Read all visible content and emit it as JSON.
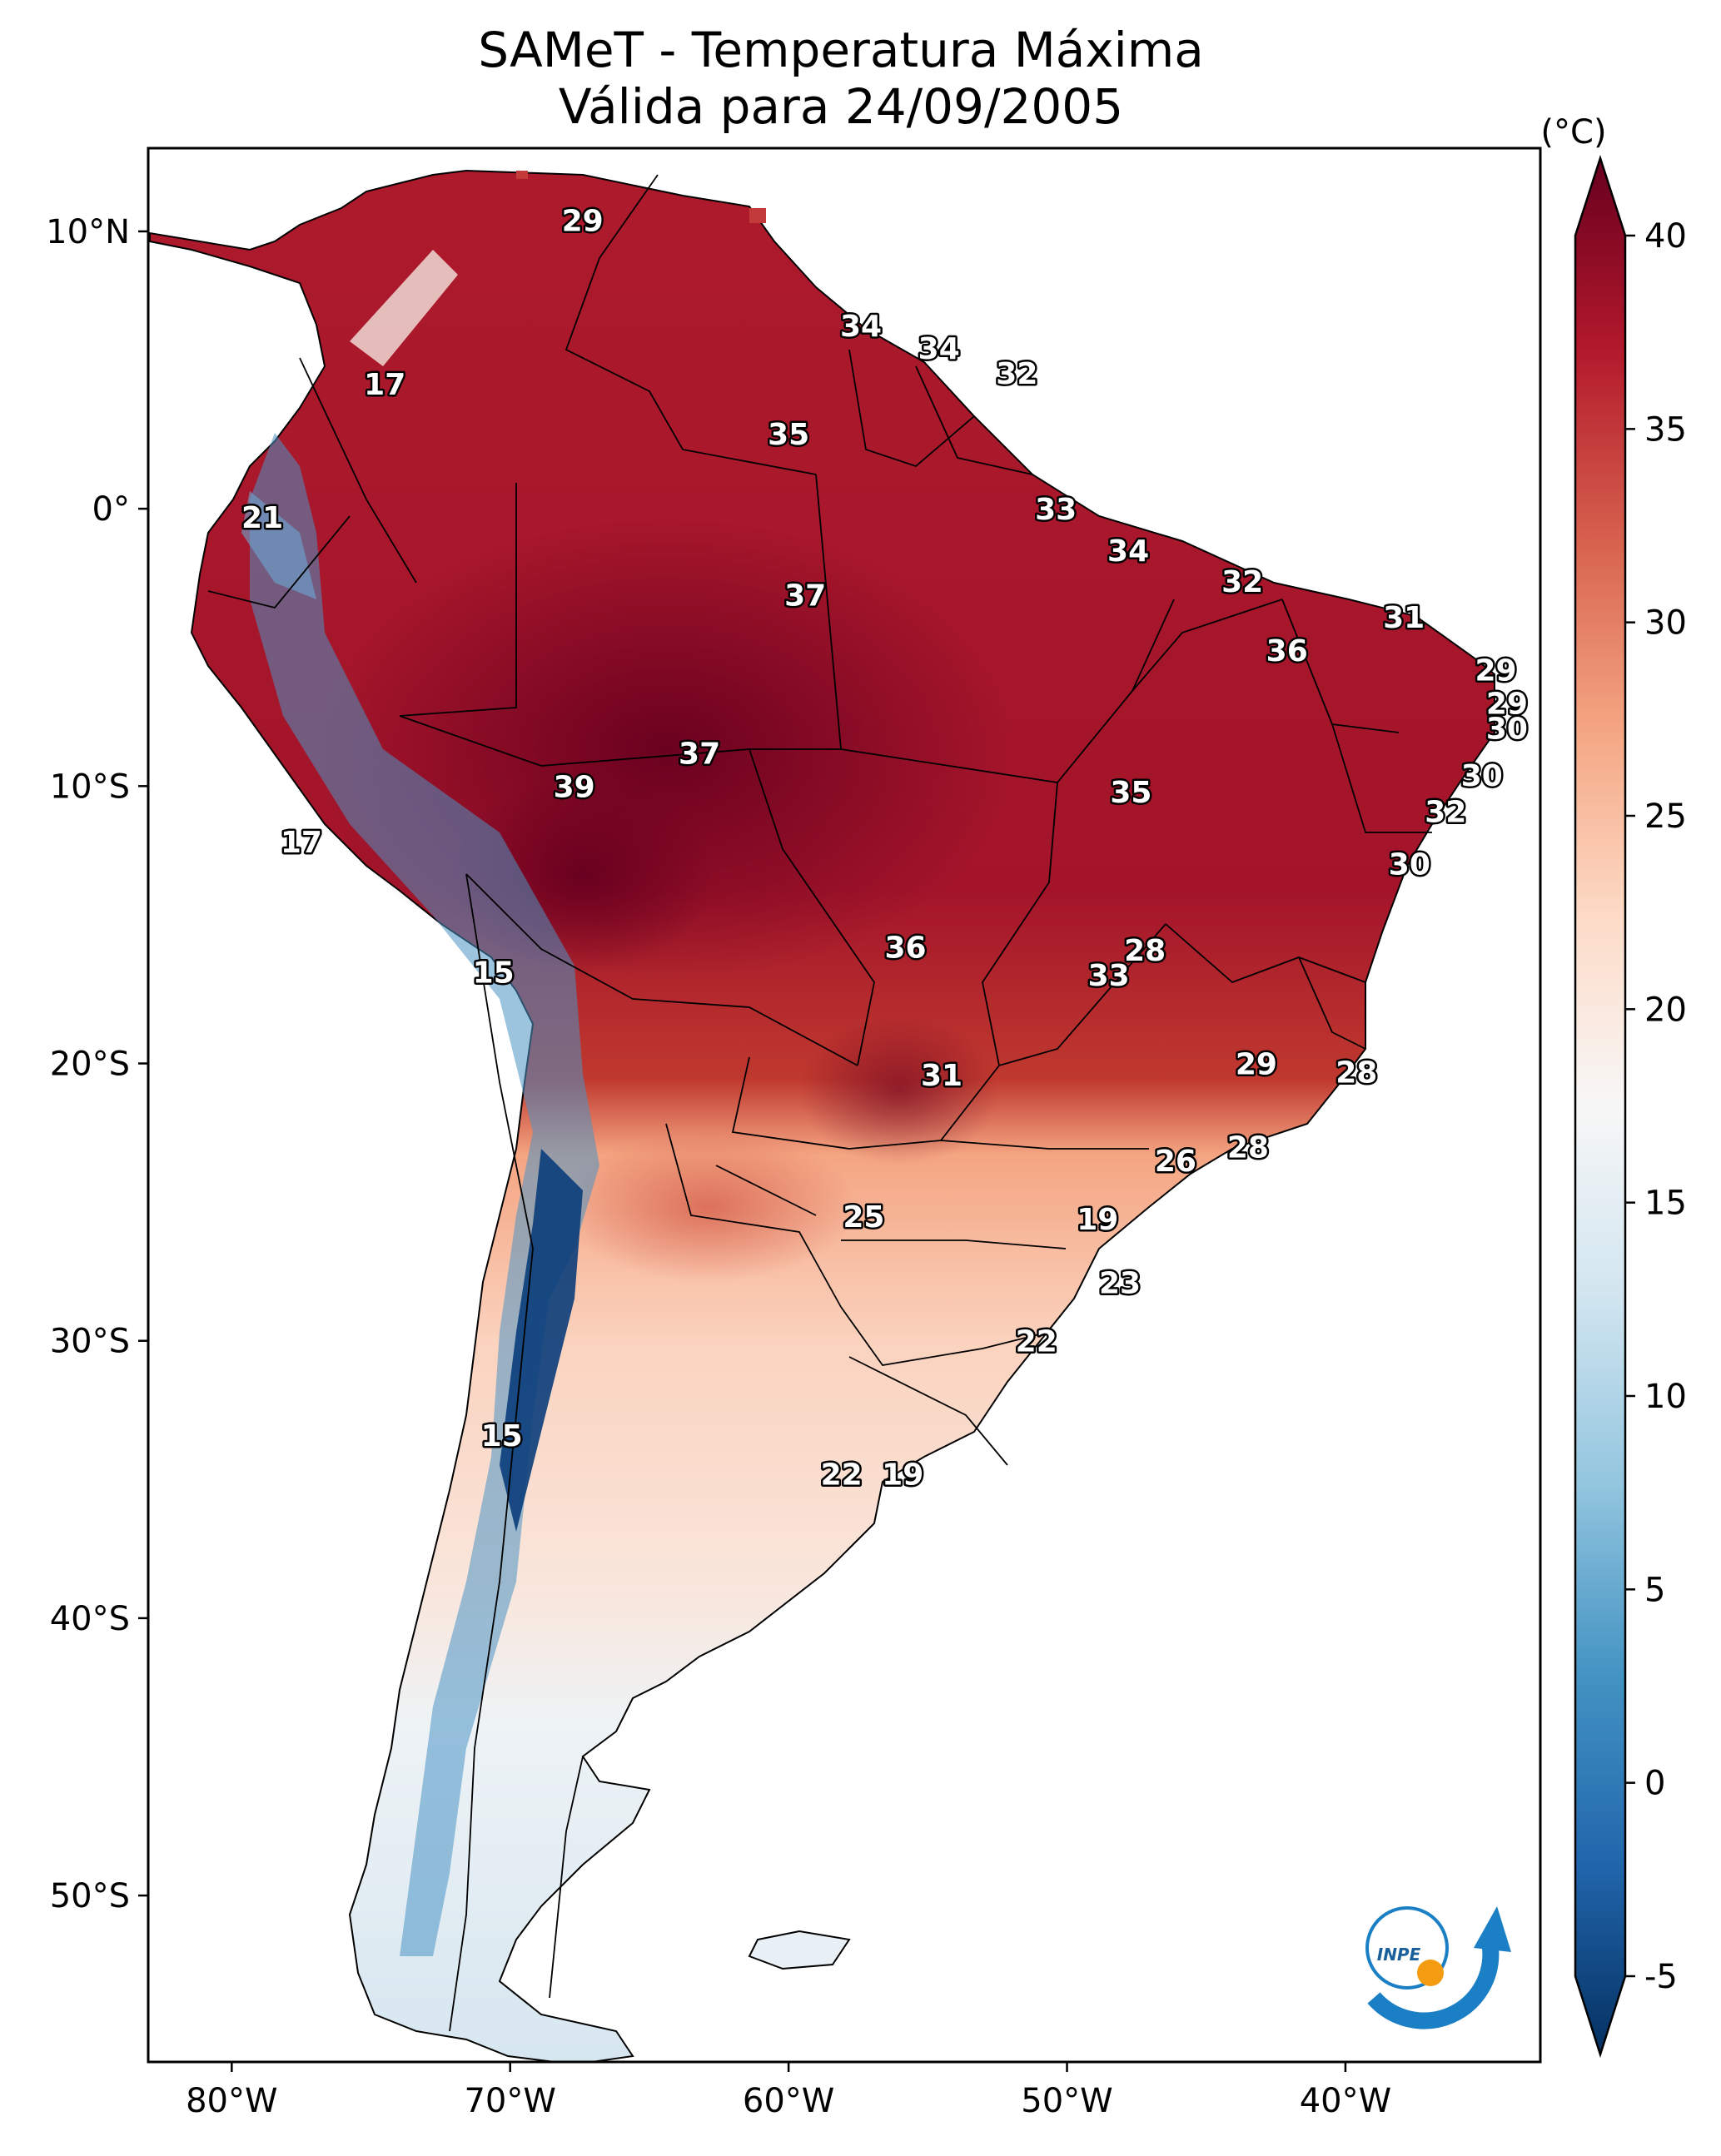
{
  "title": {
    "line1": "SAMeT - Temperatura Máxima",
    "line2": "Válida para 24/09/2005"
  },
  "map": {
    "lon_range": [
      -83,
      -33
    ],
    "lat_range": [
      -56,
      13
    ],
    "x_ticks": [
      {
        "lon": -80,
        "label": "80°W"
      },
      {
        "lon": -70,
        "label": "70°W"
      },
      {
        "lon": -60,
        "label": "60°W"
      },
      {
        "lon": -50,
        "label": "50°W"
      },
      {
        "lon": -40,
        "label": "40°W"
      }
    ],
    "y_ticks": [
      {
        "lat": 10,
        "label": "10°N"
      },
      {
        "lat": 0,
        "label": "0°"
      },
      {
        "lat": -10,
        "label": "10°S"
      },
      {
        "lat": -20,
        "label": "20°S"
      },
      {
        "lat": -30,
        "label": "30°S"
      },
      {
        "lat": -40,
        "label": "40°S"
      },
      {
        "lat": -50,
        "label": "50°S"
      }
    ],
    "labels": [
      {
        "value": "29",
        "lon": -67.4,
        "lat": 10.4
      },
      {
        "value": "34",
        "lon": -57.4,
        "lat": 6.6
      },
      {
        "value": "34",
        "lon": -54.6,
        "lat": 5.8
      },
      {
        "value": "32",
        "lon": -51.8,
        "lat": 4.9
      },
      {
        "value": "17",
        "lon": -74.5,
        "lat": 4.5
      },
      {
        "value": "35",
        "lon": -60.0,
        "lat": 2.7
      },
      {
        "value": "33",
        "lon": -50.4,
        "lat": 0.0
      },
      {
        "value": "21",
        "lon": -78.9,
        "lat": -0.3
      },
      {
        "value": "34",
        "lon": -47.8,
        "lat": -1.5
      },
      {
        "value": "32",
        "lon": -43.7,
        "lat": -2.6
      },
      {
        "value": "37",
        "lon": -59.4,
        "lat": -3.1
      },
      {
        "value": "31",
        "lon": -37.9,
        "lat": -3.9
      },
      {
        "value": "36",
        "lon": -42.1,
        "lat": -5.1
      },
      {
        "value": "29",
        "lon": -34.6,
        "lat": -5.8
      },
      {
        "value": "29",
        "lon": -34.2,
        "lat": -7.0
      },
      {
        "value": "30",
        "lon": -34.2,
        "lat": -7.9
      },
      {
        "value": "37",
        "lon": -63.2,
        "lat": -8.8
      },
      {
        "value": "30",
        "lon": -35.1,
        "lat": -9.6
      },
      {
        "value": "39",
        "lon": -67.7,
        "lat": -10.0
      },
      {
        "value": "35",
        "lon": -47.7,
        "lat": -10.2
      },
      {
        "value": "32",
        "lon": -36.4,
        "lat": -10.9
      },
      {
        "value": "17",
        "lon": -77.5,
        "lat": -12.0
      },
      {
        "value": "30",
        "lon": -37.7,
        "lat": -12.8
      },
      {
        "value": "36",
        "lon": -55.8,
        "lat": -15.8
      },
      {
        "value": "28",
        "lon": -47.2,
        "lat": -15.9
      },
      {
        "value": "33",
        "lon": -48.5,
        "lat": -16.8
      },
      {
        "value": "15",
        "lon": -70.6,
        "lat": -16.7
      },
      {
        "value": "29",
        "lon": -43.2,
        "lat": -20.0
      },
      {
        "value": "31",
        "lon": -54.5,
        "lat": -20.4
      },
      {
        "value": "28",
        "lon": -39.6,
        "lat": -20.3
      },
      {
        "value": "28",
        "lon": -43.5,
        "lat": -23.0
      },
      {
        "value": "26",
        "lon": -46.1,
        "lat": -23.5
      },
      {
        "value": "25",
        "lon": -57.3,
        "lat": -25.5
      },
      {
        "value": "19",
        "lon": -48.9,
        "lat": -25.6
      },
      {
        "value": "23",
        "lon": -48.1,
        "lat": -27.9
      },
      {
        "value": "22",
        "lon": -51.1,
        "lat": -30.0
      },
      {
        "value": "15",
        "lon": -70.3,
        "lat": -33.4
      },
      {
        "value": "22",
        "lon": -58.1,
        "lat": -34.8
      },
      {
        "value": "19",
        "lon": -55.9,
        "lat": -34.8
      }
    ]
  },
  "colorbar": {
    "unit_label": "(°C)",
    "min": -5,
    "max": 40,
    "ticks": [
      {
        "value": 40,
        "label": "40"
      },
      {
        "value": 35,
        "label": "35"
      },
      {
        "value": 30,
        "label": "30"
      },
      {
        "value": 25,
        "label": "25"
      },
      {
        "value": 20,
        "label": "20"
      },
      {
        "value": 15,
        "label": "15"
      },
      {
        "value": 10,
        "label": "10"
      },
      {
        "value": 5,
        "label": "5"
      },
      {
        "value": 0,
        "label": "0"
      },
      {
        "value": -5,
        "label": "-5"
      }
    ],
    "colors": [
      "#053061",
      "#2166ac",
      "#4393c3",
      "#92c5de",
      "#d1e5f0",
      "#f7f7f7",
      "#fddbc7",
      "#f4a582",
      "#d6604d",
      "#b2182b",
      "#67001f"
    ]
  },
  "logo": {
    "text": "INPE"
  }
}
